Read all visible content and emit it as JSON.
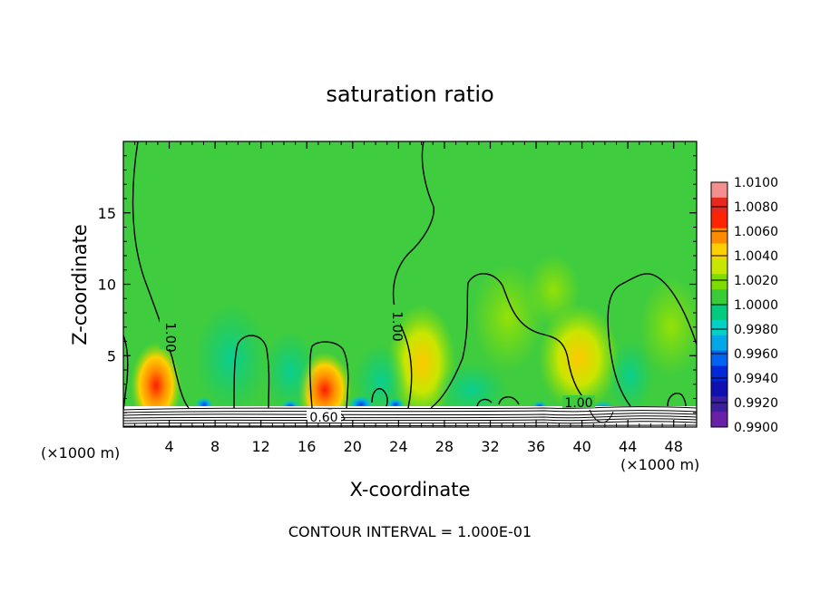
{
  "chart_data": {
    "type": "heatmap",
    "title": "saturation ratio",
    "xlabel": "X-coordinate",
    "ylabel": "Z-coordinate",
    "x_unit": "(×1000 m)",
    "y_unit": "(×1000 m)",
    "xlim": [
      0,
      50
    ],
    "ylim": [
      0,
      20
    ],
    "x_ticks": [
      4,
      8,
      12,
      16,
      20,
      24,
      28,
      32,
      36,
      40,
      44,
      48
    ],
    "y_ticks": [
      5,
      10,
      15
    ],
    "footer": "CONTOUR INTERVAL = 1.000E-01",
    "contour_labels": [
      "1.00",
      "1.00",
      "1.00",
      "0.60"
    ],
    "colorbar": {
      "labels": [
        "1.0100",
        "1.0080",
        "1.0060",
        "1.0040",
        "1.0020",
        "1.0000",
        "0.9980",
        "0.9960",
        "0.9940",
        "0.9920",
        "0.9900"
      ],
      "colors": [
        "#f28f8f",
        "#e8281d",
        "#ff2400",
        "#ff8c00",
        "#ffd000",
        "#c8e600",
        "#7ddc00",
        "#38cc38",
        "#00cc80",
        "#00d2c8",
        "#00a8e8",
        "#0064f0",
        "#0028d8",
        "#1010b0",
        "#3a1f9e",
        "#6a1fa8"
      ],
      "range": [
        0.99,
        1.01
      ]
    },
    "background_value": 1.0,
    "grid": false
  }
}
